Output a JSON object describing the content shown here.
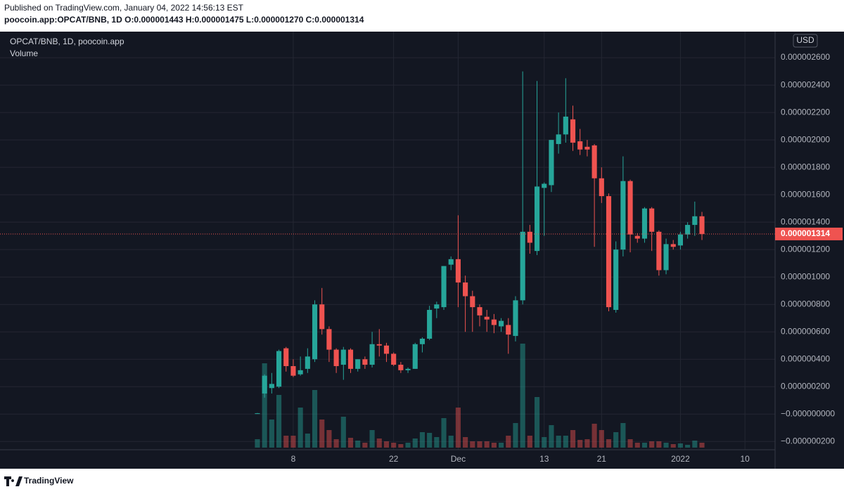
{
  "header": {
    "published": "Published on TradingView.com, January 04, 2022 14:56:13 EST",
    "symbol_line": "poocoin.app:OPCAT/BNB, 1D  O:0.000001443 H:0.000001475 L:0.000001270 C:0.000001314"
  },
  "footer": {
    "brand": "TradingView"
  },
  "chart_data": {
    "type": "candlestick",
    "title": "OPCAT/BNB, 1D, poocoin.app",
    "subtitle": "Volume",
    "currency": "USD",
    "up_color": "#26a69a",
    "down_color": "#ef5350",
    "grid": true,
    "open": [
      3e-09,
      1.5e-07,
      1.9e-07,
      2e-07,
      4.8e-07,
      3.5e-07,
      2.9e-07,
      3.3e-07,
      4e-07,
      8e-07,
      6.2e-07,
      4.7e-07,
      3.6e-07,
      4.7e-07,
      3.3e-07,
      4e-07,
      3.6e-07,
      5.1e-07,
      5e-07,
      4.4e-07,
      3.6e-07,
      3.2e-07,
      3.3e-07,
      5.1e-07,
      5.5e-07,
      7.7e-07,
      7.8e-07,
      1.09e-06,
      1.13e-06,
      9.6e-07,
      8.6e-07,
      7.8e-07,
      7.1e-07,
      6.9e-07,
      6.4e-07,
      6.5e-07,
      5.7e-07,
      8.3e-07,
      1.33e-06,
      1.19e-06,
      1.65e-06,
      1.67e-06,
      1.97e-06,
      2.04e-06,
      2.15e-06,
      1.99e-06,
      1.95e-06,
      1.96e-06,
      1.72e-06,
      1.59e-06,
      7.6e-07,
      1.2e-06,
      1.7e-06,
      1.3e-06,
      1.28e-06,
      1.5e-06,
      1.33e-06,
      1.05e-06,
      1.24e-06,
      1.23e-06,
      1.31e-06,
      1.38e-06,
      1.443e-06
    ],
    "high": [
      8e-09,
      2.9e-07,
      3e-07,
      4.7e-07,
      4.9e-07,
      4e-07,
      4.2e-07,
      4.8e-07,
      8.3e-07,
      9.2e-07,
      6.4e-07,
      4.8e-07,
      4.9e-07,
      4.8e-07,
      4e-07,
      4.2e-07,
      6e-07,
      6.2e-07,
      5.2e-07,
      4.5e-07,
      3.8e-07,
      3.4e-07,
      5.2e-07,
      5.6e-07,
      7.9e-07,
      8.2e-07,
      1.08e-06,
      1.15e-06,
      1.45e-06,
      1.01e-06,
      9e-07,
      8e-07,
      7.6e-07,
      7.3e-07,
      7e-07,
      7e-07,
      8.6e-07,
      2.5e-06,
      1.38e-06,
      2.43e-06,
      1.69e-06,
      2e-06,
      2.2e-06,
      2.45e-06,
      2.25e-06,
      2.08e-06,
      2e-06,
      1.97e-06,
      1.8e-06,
      1.61e-06,
      1.26e-06,
      1.88e-06,
      1.71e-06,
      1.32e-06,
      1.51e-06,
      1.51e-06,
      1.34e-06,
      1.28e-06,
      1.27e-06,
      1.33e-06,
      1.4e-06,
      1.55e-06,
      1.475e-06
    ],
    "low": [
      2e-09,
      1.2e-07,
      1.5e-07,
      1.9e-07,
      3.1e-07,
      2.7e-07,
      2.8e-07,
      3e-07,
      3.8e-07,
      5.8e-07,
      3.8e-07,
      3e-07,
      2.5e-07,
      3e-07,
      3.1e-07,
      3.3e-07,
      3.4e-07,
      4.2e-07,
      3.8e-07,
      3.5e-07,
      3e-07,
      3e-07,
      3.3e-07,
      4.5e-07,
      5.4e-07,
      7e-07,
      7.6e-07,
      1.05e-06,
      7.8e-07,
      6e-07,
      6e-07,
      6.4e-07,
      6e-07,
      5.9e-07,
      6e-07,
      4.4e-07,
      5.3e-07,
      8e-07,
      1.17e-06,
      1.16e-06,
      1.3e-06,
      1.62e-06,
      1.9e-06,
      1.98e-06,
      1.92e-06,
      1.89e-06,
      1.88e-06,
      1.22e-06,
      1.54e-06,
      7.5e-07,
      7.4e-07,
      1.15e-06,
      1.18e-06,
      1.25e-06,
      1.25e-06,
      1.19e-06,
      1.01e-06,
      1.02e-06,
      1.2e-06,
      1.2e-06,
      1.28e-06,
      1.3e-06,
      1.27e-06
    ],
    "close": [
      6e-09,
      2.8e-07,
      2.2e-07,
      4.6e-07,
      3.5e-07,
      2.8e-07,
      3.2e-07,
      4.2e-07,
      8e-07,
      6.2e-07,
      4.7e-07,
      3.5e-07,
      4.7e-07,
      3.3e-07,
      4e-07,
      3.6e-07,
      5.1e-07,
      5e-07,
      4.4e-07,
      3.6e-07,
      3.2e-07,
      3.3e-07,
      5.1e-07,
      5.5e-07,
      7.6e-07,
      8e-07,
      1.08e-06,
      1.13e-06,
      9.6e-07,
      8.6e-07,
      7.8e-07,
      7.2e-07,
      6.9e-07,
      6.5e-07,
      6.8e-07,
      5.8e-07,
      8.3e-07,
      1.33e-06,
      1.25e-06,
      1.66e-06,
      1.68e-06,
      2e-06,
      2.04e-06,
      2.17e-06,
      1.98e-06,
      1.93e-06,
      1.93e-06,
      1.72e-06,
      1.59e-06,
      7.8e-07,
      1.2e-06,
      1.7e-06,
      1.31e-06,
      1.28e-06,
      1.5e-06,
      1.33e-06,
      1.05e-06,
      1.24e-06,
      1.22e-06,
      1.31e-06,
      1.38e-06,
      1.443e-06,
      1.314e-06
    ],
    "volume": [
      12,
      120,
      40,
      75,
      17,
      17,
      57,
      20,
      82,
      40,
      25,
      12,
      44,
      14,
      10,
      7,
      25,
      13,
      9,
      7,
      5,
      7,
      13,
      22,
      21,
      15,
      42,
      17,
      57,
      15,
      9,
      9,
      9,
      7,
      7,
      17,
      35,
      148,
      17,
      72,
      15,
      32,
      17,
      17,
      25,
      11,
      12,
      34,
      25,
      12,
      22,
      35,
      12,
      7,
      7,
      9,
      9,
      7,
      5,
      6,
      4,
      10,
      7
    ],
    "last_price_label": "0.000001314",
    "xlim": [
      -35.9,
      72.2
    ],
    "xticks": [
      {
        "value": 5,
        "label": "8"
      },
      {
        "value": 19,
        "label": "22"
      },
      {
        "value": 28,
        "label": "Dec"
      },
      {
        "value": 40,
        "label": "13"
      },
      {
        "value": 48,
        "label": "21"
      },
      {
        "value": 59,
        "label": "2022"
      },
      {
        "value": 68,
        "label": "10"
      }
    ],
    "ylim": [
      -2.6e-07,
      2.79e-06
    ],
    "yticks": [
      {
        "value": -2e-07,
        "label": "−0.000000200"
      },
      {
        "value": 0,
        "label": "−0.000000000"
      },
      {
        "value": 2e-07,
        "label": "0.000000200"
      },
      {
        "value": 4e-07,
        "label": "0.000000400"
      },
      {
        "value": 6e-07,
        "label": "0.000000600"
      },
      {
        "value": 8e-07,
        "label": "0.000000800"
      },
      {
        "value": 1e-06,
        "label": "0.000001000"
      },
      {
        "value": 1.2e-06,
        "label": "0.000001200"
      },
      {
        "value": 1.4e-06,
        "label": "0.000001400"
      },
      {
        "value": 1.6e-06,
        "label": "0.000001600"
      },
      {
        "value": 1.8e-06,
        "label": "0.000001800"
      },
      {
        "value": 2e-06,
        "label": "0.000002000"
      },
      {
        "value": 2.2e-06,
        "label": "0.000002200"
      },
      {
        "value": 2.4e-06,
        "label": "0.000002400"
      },
      {
        "value": 2.6e-06,
        "label": "0.000002600"
      }
    ]
  }
}
